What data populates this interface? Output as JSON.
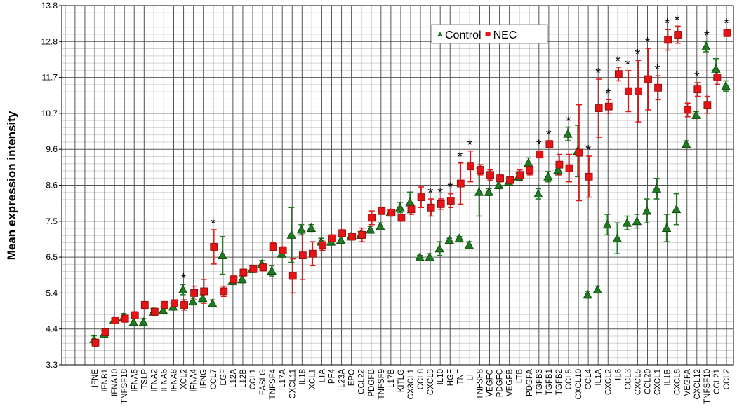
{
  "chart_data": {
    "type": "errorbar",
    "ylabel": "Mean expression intensity",
    "categories": [
      "IFNE",
      "IFNB1",
      "IFNA10",
      "TNFSF18",
      "IFNA5",
      "TSLP",
      "IFNA2",
      "IFNA6",
      "IFNA8",
      "XCL2",
      "IFNA4",
      "IFNG",
      "CCL7",
      "EGF",
      "IL12A",
      "IL12B",
      "CCL1",
      "FASLG",
      "TNFSF4",
      "IL17A",
      "CXCL11",
      "IL18",
      "XCL1",
      "LTA",
      "PF4",
      "IL23A",
      "EPO",
      "CCL22",
      "PDGFB",
      "TNFSF9",
      "IL17B",
      "KITLG",
      "CX3CL1",
      "CCL8",
      "CXCL3",
      "IL10",
      "HGF",
      "TNF",
      "LIF",
      "TNFSF8",
      "VEGFC",
      "PDGFC",
      "VEGFB",
      "LTB",
      "PDGFA",
      "TGFB3",
      "TGFB1",
      "TGFB2",
      "CCL5",
      "CXCL10",
      "CCL4",
      "IL1A",
      "CXCL2",
      "IL6",
      "CCL3",
      "CXCL5",
      "CCL20",
      "CXCL1",
      "IL1B",
      "CXCL8",
      "VEGFA",
      "CXCL12",
      "TNFSF10",
      "CCL21",
      "CCL2"
    ],
    "series": [
      {
        "name": "Control",
        "color": "#1e7a1e",
        "marker": "triangle",
        "values": [
          4.05,
          4.2,
          4.6,
          4.7,
          4.55,
          4.55,
          4.85,
          4.9,
          5.0,
          5.5,
          5.15,
          5.25,
          5.1,
          6.5,
          5.75,
          5.8,
          6.1,
          6.25,
          6.05,
          6.55,
          7.1,
          7.25,
          7.3,
          6.9,
          6.9,
          6.95,
          7.05,
          7.1,
          7.25,
          7.35,
          7.75,
          7.9,
          8.05,
          6.45,
          6.45,
          6.7,
          6.95,
          7.0,
          6.8,
          8.35,
          8.35,
          8.55,
          8.65,
          8.8,
          9.2,
          8.3,
          8.8,
          9.0,
          10.05,
          9.55,
          5.35,
          5.5,
          7.4,
          7.0,
          7.45,
          7.5,
          7.8,
          8.45,
          7.3,
          7.85,
          9.75,
          10.6,
          12.6,
          11.95,
          11.45
        ],
        "errors": [
          0.1,
          0.1,
          0.05,
          0.1,
          0.1,
          0.1,
          0.1,
          0.1,
          0.1,
          0.15,
          0.1,
          0.1,
          0.1,
          0.55,
          0.1,
          0.1,
          0.1,
          0.1,
          0.15,
          0.1,
          0.8,
          0.15,
          0.1,
          0.1,
          0.1,
          0.1,
          0.1,
          0.1,
          0.1,
          0.1,
          0.1,
          0.15,
          0.3,
          0.05,
          0.1,
          0.2,
          0.05,
          0.05,
          0.1,
          0.7,
          0.1,
          0.1,
          0.1,
          0.1,
          0.15,
          0.15,
          0.15,
          0.15,
          0.2,
          0.75,
          0.1,
          0.1,
          0.3,
          0.45,
          0.2,
          0.2,
          0.35,
          0.3,
          0.4,
          0.45,
          0.1,
          0.1,
          0.15,
          0.3,
          0.15
        ]
      },
      {
        "name": "NEC",
        "color": "#e41414",
        "marker": "square",
        "values": [
          3.95,
          4.25,
          4.6,
          4.65,
          4.75,
          5.05,
          4.85,
          5.05,
          5.1,
          5.05,
          5.4,
          5.45,
          6.75,
          5.45,
          5.8,
          6.0,
          6.1,
          6.15,
          6.75,
          6.65,
          5.9,
          6.5,
          6.55,
          6.8,
          7.0,
          7.15,
          7.05,
          7.1,
          7.6,
          7.8,
          7.75,
          7.6,
          7.85,
          8.2,
          7.9,
          8.0,
          8.1,
          8.6,
          9.1,
          9.0,
          8.85,
          8.75,
          8.7,
          8.85,
          9.0,
          9.45,
          9.75,
          9.15,
          9.05,
          9.5,
          8.8,
          10.8,
          10.85,
          11.8,
          11.3,
          11.3,
          11.65,
          11.4,
          12.8,
          12.95,
          10.75,
          11.35,
          10.9,
          11.7,
          13.0
        ],
        "errors": [
          0.1,
          0.1,
          0.05,
          0.1,
          0.1,
          0.1,
          0.1,
          0.1,
          0.1,
          0.15,
          0.2,
          0.35,
          0.5,
          0.15,
          0.1,
          0.1,
          0.05,
          0.1,
          0.12,
          0.1,
          0.5,
          0.7,
          0.35,
          0.15,
          0.1,
          0.1,
          0.1,
          0.2,
          0.2,
          0.1,
          0.1,
          0.1,
          0.15,
          0.3,
          0.25,
          0.15,
          0.2,
          0.6,
          0.45,
          0.15,
          0.15,
          0.1,
          0.1,
          0.15,
          0.15,
          0.1,
          0.1,
          0.3,
          0.4,
          1.4,
          0.6,
          0.85,
          0.2,
          0.2,
          0.6,
          0.9,
          0.9,
          0.35,
          0.3,
          0.25,
          0.2,
          0.2,
          0.25,
          0.2,
          0.1
        ]
      }
    ],
    "annotations": [
      {
        "text": "*",
        "category": "XCL2"
      },
      {
        "text": "*",
        "category": "CCL7"
      },
      {
        "text": "*",
        "category": "CXCL3"
      },
      {
        "text": "*",
        "category": "IL10"
      },
      {
        "text": "*",
        "category": "HGF"
      },
      {
        "text": "*",
        "category": "TNF"
      },
      {
        "text": "*",
        "category": "LIF"
      },
      {
        "text": "*",
        "category": "TGFB3"
      },
      {
        "text": "*",
        "category": "TGFB1"
      },
      {
        "text": "*",
        "category": "CCL5"
      },
      {
        "text": "*",
        "category": "CCL4"
      },
      {
        "text": "*",
        "category": "IL1A"
      },
      {
        "text": "*",
        "category": "CXCL2"
      },
      {
        "text": "*",
        "category": "IL6"
      },
      {
        "text": "*",
        "category": "CCL3"
      },
      {
        "text": "*",
        "category": "CXCL5"
      },
      {
        "text": "*",
        "category": "CCL20"
      },
      {
        "text": "*",
        "category": "CXCL1"
      },
      {
        "text": "*",
        "category": "IL1B"
      },
      {
        "text": "*",
        "category": "CXCL8"
      },
      {
        "text": "*",
        "category": "CXCL12"
      },
      {
        "text": "*",
        "category": "TNFSF10"
      },
      {
        "text": "*",
        "category": "CCL2"
      }
    ],
    "ylim": [
      3.3,
      13.8
    ],
    "yticks": [
      3.3,
      {
        "value": 4.35,
        "label": "4.4"
      },
      5.4,
      {
        "value": 6.45,
        "label": "6.5"
      },
      7.5,
      {
        "value": 8.55,
        "label": "8.6"
      },
      9.6,
      {
        "value": 10.65,
        "label": "10.7"
      },
      11.7,
      {
        "value": 12.75,
        "label": "12.8"
      },
      13.8
    ],
    "grid": true,
    "legend": "top-right"
  }
}
